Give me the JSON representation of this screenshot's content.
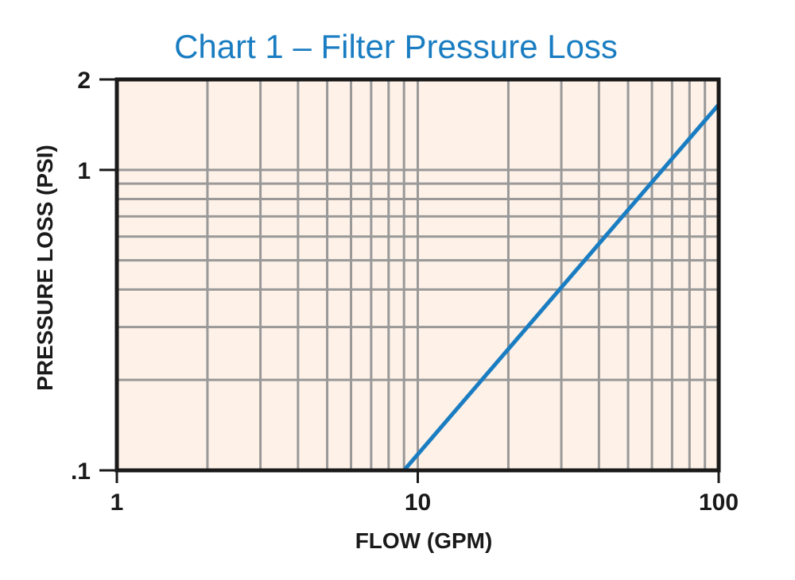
{
  "chart_data": {
    "type": "line",
    "title": "Chart 1 – Filter Pressure Loss",
    "xlabel": "FLOW (GPM)",
    "ylabel": "PRESSURE LOSS (PSI)",
    "xscale": "log",
    "yscale": "log",
    "xlim": [
      1,
      100
    ],
    "ylim": [
      0.1,
      2
    ],
    "x_ticks": [
      {
        "value": 1,
        "label": "1"
      },
      {
        "value": 10,
        "label": "10"
      },
      {
        "value": 100,
        "label": "100"
      }
    ],
    "y_ticks": [
      {
        "value": 0.1,
        "label": ".1"
      },
      {
        "value": 1,
        "label": "1"
      },
      {
        "value": 2,
        "label": "2"
      }
    ],
    "x_gridlines": [
      2,
      3,
      4,
      5,
      6,
      7,
      8,
      9,
      10,
      20,
      30,
      40,
      50,
      60,
      70,
      80,
      90
    ],
    "y_gridlines": [
      0.2,
      0.3,
      0.4,
      0.5,
      0.6,
      0.7,
      0.8,
      0.9,
      1
    ],
    "grid": true,
    "series": [
      {
        "x": [
          9,
          100
        ],
        "y": [
          0.1,
          1.65
        ],
        "color": "#1a7dc2"
      }
    ]
  },
  "colors": {
    "title": "#1a7dc2",
    "plot_background": "#fdf1e8",
    "grid": "#999999",
    "frame": "#1a1a1a",
    "line": "#1a7dc2"
  }
}
